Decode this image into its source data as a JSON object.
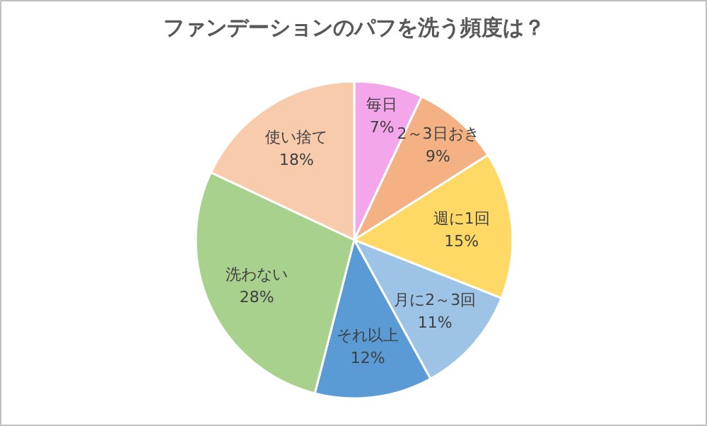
{
  "chart_data": {
    "type": "pie",
    "title": "ファンデーションのパフを洗う頻度は？",
    "categories": [
      "毎日",
      "2～3日おき",
      "週に1回",
      "月に2～3回",
      "それ以上",
      "洗わない",
      "使い捨て"
    ],
    "values": [
      7,
      9,
      15,
      11,
      12,
      28,
      18
    ],
    "value_labels": [
      "7%",
      "9%",
      "15%",
      "11%",
      "12%",
      "28%",
      "18%"
    ],
    "colors": [
      "#f4a6ea",
      "#f4b183",
      "#ffd966",
      "#9dc3e6",
      "#5b9bd5",
      "#a9d18e",
      "#f8cbad"
    ],
    "legend": false
  }
}
